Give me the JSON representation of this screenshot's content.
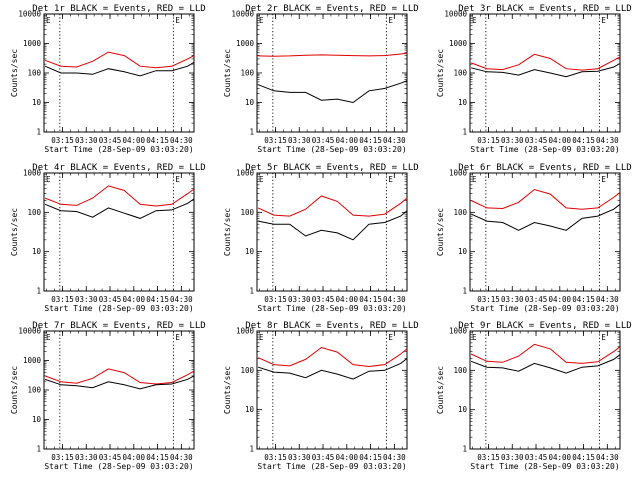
{
  "chart_data": [
    {
      "type": "line",
      "title": "Det 1r BLACK = Events, RED = LLD",
      "xlabel": "Start Time (28-Sep-09 03:03:20)",
      "ylabel": "Counts/sec",
      "yscale": "log",
      "ylim": [
        1,
        10000
      ],
      "xlim": [
        "03:03:20",
        "04:38:00"
      ],
      "x_tick_labels": [
        "03:15",
        "03:30",
        "03:45",
        "04:00",
        "04:15",
        "04:30"
      ],
      "y_tick_labels": [
        "1",
        "10",
        "100",
        "1000",
        "10000"
      ],
      "vertical_markers": [
        "03:13:20",
        "04:25:00"
      ],
      "corner_markers": [
        "E"
      ],
      "x": [
        "03:04",
        "03:14",
        "03:24",
        "03:34",
        "03:44",
        "03:54",
        "04:04",
        "04:14",
        "04:24",
        "04:34",
        "04:38"
      ],
      "series": [
        {
          "name": "RED = LLD",
          "color": "#e00000",
          "values": [
            270,
            170,
            160,
            250,
            510,
            390,
            170,
            150,
            170,
            300,
            390
          ]
        },
        {
          "name": "BLACK = Events",
          "color": "#000000",
          "values": [
            170,
            100,
            100,
            90,
            140,
            110,
            80,
            120,
            120,
            170,
            230
          ]
        }
      ]
    },
    {
      "type": "line",
      "title": "Det 2r BLACK = Events, RED = LLD",
      "xlabel": "Start Time (28-Sep-09 03:03:20)",
      "ylabel": "Counts/sec",
      "yscale": "log",
      "ylim": [
        1,
        10000
      ],
      "xlim": [
        "03:03:20",
        "04:38:00"
      ],
      "x_tick_labels": [
        "03:15",
        "03:30",
        "03:45",
        "04:00",
        "04:15",
        "04:30"
      ],
      "y_tick_labels": [
        "1",
        "10",
        "100",
        "1000",
        "10000"
      ],
      "vertical_markers": [
        "03:13:20",
        "04:25:00"
      ],
      "corner_markers": [
        "E"
      ],
      "x": [
        "03:04",
        "03:14",
        "03:24",
        "03:34",
        "03:44",
        "03:54",
        "04:04",
        "04:14",
        "04:24",
        "04:34",
        "04:38"
      ],
      "series": [
        {
          "name": "RED = LLD",
          "color": "#e00000",
          "values": [
            380,
            370,
            380,
            400,
            410,
            400,
            390,
            380,
            390,
            440,
            470
          ]
        },
        {
          "name": "BLACK = Events",
          "color": "#000000",
          "values": [
            40,
            25,
            22,
            22,
            12,
            13,
            10,
            25,
            30,
            45,
            55
          ]
        }
      ]
    },
    {
      "type": "line",
      "title": "Det 3r BLACK = Events, RED = LLD",
      "xlabel": "Start Time (28-Sep-09 03:03:20)",
      "ylabel": "Counts/sec",
      "yscale": "log",
      "ylim": [
        1,
        10000
      ],
      "xlim": [
        "03:03:20",
        "04:38:00"
      ],
      "x_tick_labels": [
        "03:15",
        "03:30",
        "03:45",
        "04:00",
        "04:15",
        "04:30"
      ],
      "y_tick_labels": [
        "1",
        "10",
        "100",
        "1000",
        "10000"
      ],
      "vertical_markers": [
        "03:13:20",
        "04:25:00"
      ],
      "corner_markers": [
        "E"
      ],
      "x": [
        "03:04",
        "03:14",
        "03:24",
        "03:34",
        "03:44",
        "03:54",
        "04:04",
        "04:14",
        "04:24",
        "04:34",
        "04:38"
      ],
      "series": [
        {
          "name": "RED = LLD",
          "color": "#e00000",
          "values": [
            220,
            140,
            130,
            190,
            430,
            310,
            140,
            125,
            140,
            270,
            350
          ]
        },
        {
          "name": "BLACK = Events",
          "color": "#000000",
          "values": [
            150,
            110,
            105,
            85,
            130,
            100,
            75,
            110,
            115,
            160,
            210
          ]
        }
      ]
    },
    {
      "type": "line",
      "title": "Det 4r BLACK = Events, RED = LLD",
      "xlabel": "Start Time (28-Sep-09 03:03:20)",
      "ylabel": "Counts/sec",
      "yscale": "log",
      "ylim": [
        1,
        1000
      ],
      "xlim": [
        "03:03:20",
        "04:38:00"
      ],
      "x_tick_labels": [
        "03:15",
        "03:30",
        "03:45",
        "04:00",
        "04:15",
        "04:30"
      ],
      "y_tick_labels": [
        "1",
        "10",
        "100",
        "1000"
      ],
      "vertical_markers": [
        "03:13:20",
        "04:25:00"
      ],
      "corner_markers": [
        "E"
      ],
      "x": [
        "03:04",
        "03:14",
        "03:24",
        "03:34",
        "03:44",
        "03:54",
        "04:04",
        "04:14",
        "04:24",
        "04:34",
        "04:38"
      ],
      "series": [
        {
          "name": "RED = LLD",
          "color": "#e00000",
          "values": [
            230,
            160,
            150,
            230,
            470,
            360,
            160,
            145,
            160,
            300,
            390
          ]
        },
        {
          "name": "BLACK = Events",
          "color": "#000000",
          "values": [
            160,
            110,
            105,
            75,
            130,
            95,
            70,
            110,
            115,
            170,
            220
          ]
        }
      ]
    },
    {
      "type": "line",
      "title": "Det 5r BLACK = Events, RED = LLD",
      "xlabel": "Start Time (28-Sep-09 03:03:20)",
      "ylabel": "Counts/sec",
      "yscale": "log",
      "ylim": [
        1,
        1000
      ],
      "xlim": [
        "03:03:20",
        "04:38:00"
      ],
      "x_tick_labels": [
        "03:15",
        "03:30",
        "03:45",
        "04:00",
        "04:15",
        "04:30"
      ],
      "y_tick_labels": [
        "1",
        "10",
        "100",
        "1000"
      ],
      "vertical_markers": [
        "03:13:20",
        "04:25:00"
      ],
      "corner_markers": [
        "E"
      ],
      "x": [
        "03:04",
        "03:14",
        "03:24",
        "03:34",
        "03:44",
        "03:54",
        "04:04",
        "04:14",
        "04:24",
        "04:34",
        "04:38"
      ],
      "series": [
        {
          "name": "RED = LLD",
          "color": "#e00000",
          "values": [
            130,
            85,
            80,
            120,
            260,
            190,
            85,
            80,
            90,
            170,
            230
          ]
        },
        {
          "name": "BLACK = Events",
          "color": "#000000",
          "values": [
            60,
            50,
            50,
            25,
            35,
            30,
            20,
            50,
            55,
            80,
            110
          ]
        }
      ]
    },
    {
      "type": "line",
      "title": "Det 6r BLACK = Events, RED = LLD",
      "xlabel": "Start Time (28-Sep-09 03:03:20)",
      "ylabel": "Counts/sec",
      "yscale": "log",
      "ylim": [
        1,
        1000
      ],
      "xlim": [
        "03:03:20",
        "04:38:00"
      ],
      "x_tick_labels": [
        "03:15",
        "03:30",
        "03:45",
        "04:00",
        "04:15",
        "04:30"
      ],
      "y_tick_labels": [
        "1",
        "10",
        "100",
        "1000"
      ],
      "vertical_markers": [
        "03:13:20",
        "04:25:00"
      ],
      "corner_markers": [
        "E"
      ],
      "x": [
        "03:04",
        "03:14",
        "03:24",
        "03:34",
        "03:44",
        "03:54",
        "04:04",
        "04:14",
        "04:24",
        "04:34",
        "04:38"
      ],
      "series": [
        {
          "name": "RED = LLD",
          "color": "#e00000",
          "values": [
            200,
            130,
            125,
            180,
            380,
            290,
            130,
            120,
            130,
            240,
            320
          ]
        },
        {
          "name": "BLACK = Events",
          "color": "#000000",
          "values": [
            90,
            60,
            55,
            35,
            55,
            45,
            35,
            70,
            80,
            120,
            160
          ]
        }
      ]
    },
    {
      "type": "line",
      "title": "Det 7r BLACK = Events, RED = LLD",
      "xlabel": "Start Time (28-Sep-09 03:03:20)",
      "ylabel": "Counts/sec",
      "yscale": "log",
      "ylim": [
        1,
        10000
      ],
      "xlim": [
        "03:03:20",
        "04:38:00"
      ],
      "x_tick_labels": [
        "03:15",
        "03:30",
        "03:45",
        "04:00",
        "04:15",
        "04:30"
      ],
      "y_tick_labels": [
        "1",
        "10",
        "100",
        "1000",
        "10000"
      ],
      "vertical_markers": [
        "03:13:20",
        "04:25:00"
      ],
      "corner_markers": [
        "E"
      ],
      "x": [
        "03:04",
        "03:14",
        "03:24",
        "03:34",
        "03:44",
        "03:54",
        "04:04",
        "04:14",
        "04:24",
        "04:34",
        "04:38"
      ],
      "series": [
        {
          "name": "RED = LLD",
          "color": "#e00000",
          "values": [
            300,
            190,
            170,
            250,
            520,
            390,
            180,
            160,
            180,
            330,
            440
          ]
        },
        {
          "name": "BLACK = Events",
          "color": "#000000",
          "values": [
            230,
            150,
            140,
            120,
            190,
            150,
            110,
            150,
            160,
            230,
            300
          ]
        }
      ]
    },
    {
      "type": "line",
      "title": "Det 8r BLACK = Events, RED = LLD",
      "xlabel": "Start Time (28-Sep-09 03:03:20)",
      "ylabel": "Counts/sec",
      "yscale": "log",
      "ylim": [
        1,
        1000
      ],
      "xlim": [
        "03:03:20",
        "04:38:00"
      ],
      "x_tick_labels": [
        "03:15",
        "03:30",
        "03:45",
        "04:00",
        "04:15",
        "04:30"
      ],
      "y_tick_labels": [
        "1",
        "10",
        "100",
        "1000"
      ],
      "vertical_markers": [
        "03:13:20",
        "04:25:00"
      ],
      "corner_markers": [
        "E"
      ],
      "x": [
        "03:04",
        "03:14",
        "03:24",
        "03:34",
        "03:44",
        "03:54",
        "04:04",
        "04:14",
        "04:24",
        "04:34",
        "04:38"
      ],
      "series": [
        {
          "name": "RED = LLD",
          "color": "#e00000",
          "values": [
            210,
            140,
            130,
            190,
            380,
            290,
            140,
            125,
            140,
            260,
            350
          ]
        },
        {
          "name": "BLACK = Events",
          "color": "#000000",
          "values": [
            120,
            90,
            85,
            65,
            100,
            80,
            60,
            95,
            100,
            150,
            200
          ]
        }
      ]
    },
    {
      "type": "line",
      "title": "Det 9r BLACK = Events, RED = LLD",
      "xlabel": "Start Time (28-Sep-09 03:03:20)",
      "ylabel": "Counts/sec",
      "yscale": "log",
      "ylim": [
        1,
        1000
      ],
      "xlim": [
        "03:03:20",
        "04:38:00"
      ],
      "x_tick_labels": [
        "03:15",
        "03:30",
        "03:45",
        "04:00",
        "04:15",
        "04:30"
      ],
      "y_tick_labels": [
        "1",
        "10",
        "100",
        "1000"
      ],
      "vertical_markers": [
        "03:13:20",
        "04:25:00"
      ],
      "corner_markers": [
        "E"
      ],
      "x": [
        "03:04",
        "03:14",
        "03:24",
        "03:34",
        "03:44",
        "03:54",
        "04:04",
        "04:14",
        "04:24",
        "04:34",
        "04:38"
      ],
      "series": [
        {
          "name": "RED = LLD",
          "color": "#e00000",
          "values": [
            260,
            170,
            160,
            230,
            460,
            350,
            160,
            150,
            165,
            300,
            400
          ]
        },
        {
          "name": "BLACK = Events",
          "color": "#000000",
          "values": [
            170,
            120,
            115,
            95,
            150,
            115,
            85,
            120,
            130,
            190,
            250
          ]
        }
      ]
    }
  ]
}
